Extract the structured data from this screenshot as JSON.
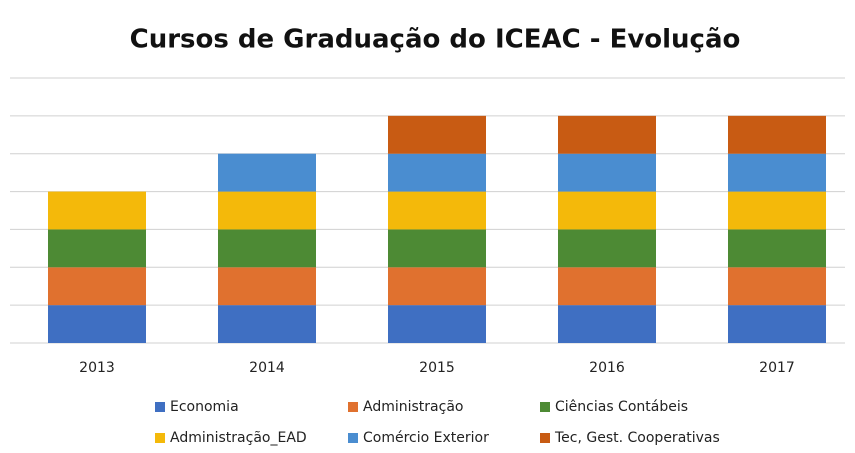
{
  "chart_data": {
    "type": "stacked_bar",
    "title": "Cursos de Graduação do ICEAC - Evolução",
    "categories": [
      "2013",
      "2014",
      "2015",
      "2016",
      "2017"
    ],
    "series": [
      {
        "name": "Economia",
        "color": "#3f6fc2",
        "values": [
          1,
          1,
          1,
          1,
          1
        ]
      },
      {
        "name": "Administração",
        "color": "#e0712f",
        "values": [
          1,
          1,
          1,
          1,
          1
        ]
      },
      {
        "name": "Ciências Contábeis",
        "color": "#4d8a34",
        "values": [
          1,
          1,
          1,
          1,
          1
        ]
      },
      {
        "name": "Administração_EAD",
        "color": "#f4b90a",
        "values": [
          1,
          1,
          1,
          1,
          1
        ]
      },
      {
        "name": "Comércio Exterior",
        "color": "#4a8dd0",
        "values": [
          0,
          1,
          1,
          1,
          1
        ]
      },
      {
        "name": "Tec, Gest. Cooperativas",
        "color": "#c85b13",
        "values": [
          0,
          0,
          1,
          1,
          1
        ]
      }
    ],
    "ylim": [
      0,
      7
    ],
    "yticks": [
      0,
      1,
      2,
      3,
      4,
      5,
      6,
      7
    ],
    "grid": true,
    "legend": "bottom"
  }
}
